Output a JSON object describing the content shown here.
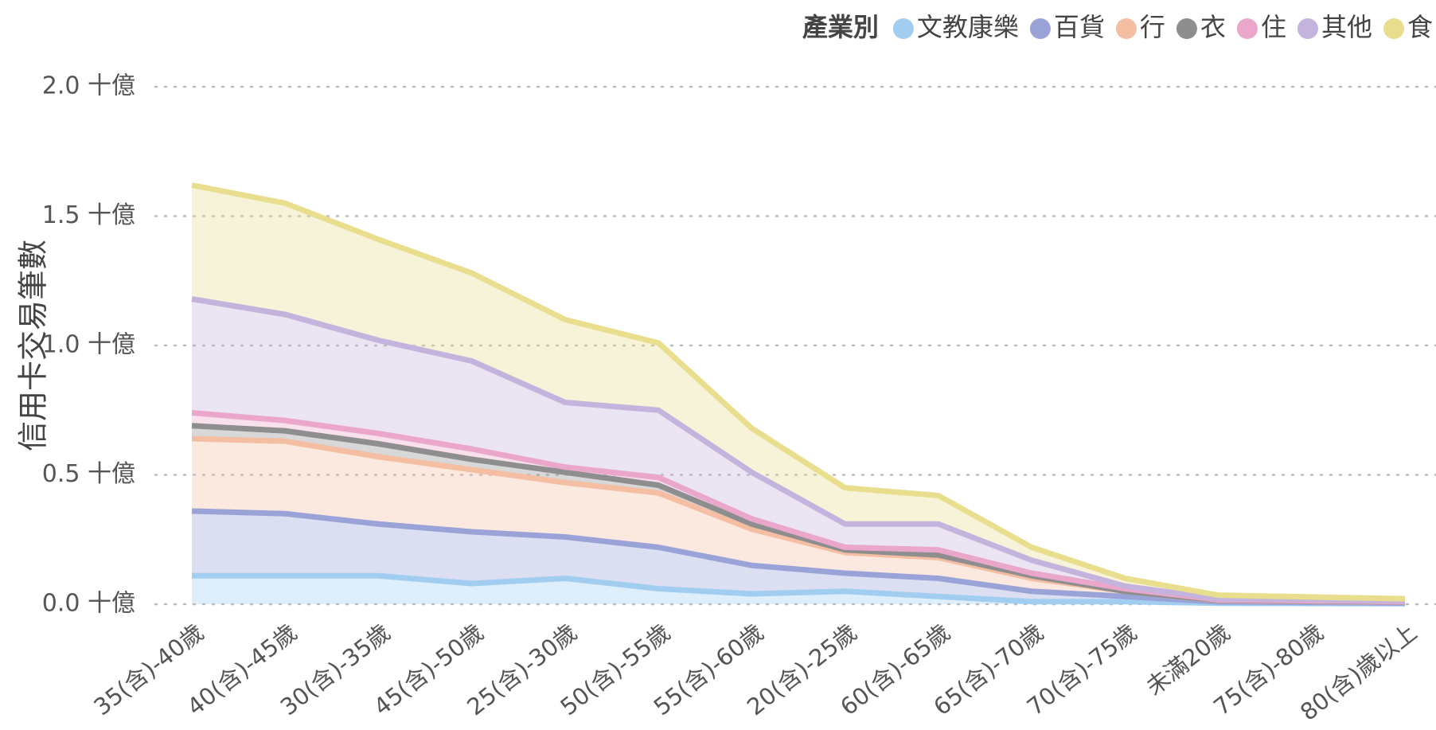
{
  "chart_data": {
    "type": "stacked_area",
    "ylabel": "信用卡交易筆數",
    "legend_title": "產業別",
    "legend_position": "top-right",
    "grid": true,
    "categories": [
      "35(含)-40歲",
      "40(含)-45歲",
      "30(含)-35歲",
      "45(含)-50歲",
      "25(含)-30歲",
      "50(含)-55歲",
      "55(含)-60歲",
      "20(含)-25歲",
      "60(含)-65歲",
      "65(含)-70歲",
      "70(含)-75歲",
      "未滿20歲",
      "75(含)-80歲",
      "80(含)歲以上"
    ],
    "series": [
      {
        "name": "文教康樂",
        "color": "#a0cdf0",
        "values": [
          0.11,
          0.11,
          0.11,
          0.08,
          0.1,
          0.06,
          0.04,
          0.05,
          0.03,
          0.01,
          0.01,
          0.004,
          0.003,
          0.002
        ]
      },
      {
        "name": "百貨",
        "color": "#9aa3d8",
        "values": [
          0.25,
          0.24,
          0.2,
          0.2,
          0.16,
          0.16,
          0.11,
          0.07,
          0.07,
          0.04,
          0.02,
          0.005,
          0.004,
          0.003
        ]
      },
      {
        "name": "行",
        "color": "#f4bea3",
        "values": [
          0.28,
          0.28,
          0.26,
          0.24,
          0.21,
          0.21,
          0.14,
          0.08,
          0.08,
          0.05,
          0.02,
          0.005,
          0.004,
          0.003
        ]
      },
      {
        "name": "衣",
        "color": "#8e8e8e",
        "values": [
          0.05,
          0.04,
          0.05,
          0.04,
          0.04,
          0.03,
          0.02,
          0.01,
          0.01,
          0.01,
          0.0,
          0.001,
          0.001,
          0.001
        ]
      },
      {
        "name": "住",
        "color": "#eba6cc",
        "values": [
          0.05,
          0.04,
          0.04,
          0.04,
          0.02,
          0.03,
          0.02,
          0.01,
          0.02,
          0.01,
          0.01,
          0.002,
          0.002,
          0.001
        ]
      },
      {
        "name": "其他",
        "color": "#c4b3dd",
        "values": [
          0.44,
          0.41,
          0.36,
          0.34,
          0.25,
          0.26,
          0.18,
          0.09,
          0.1,
          0.05,
          0.01,
          0.004,
          0.004,
          0.003
        ]
      },
      {
        "name": "食",
        "color": "#e8de8e",
        "values": [
          0.44,
          0.43,
          0.39,
          0.34,
          0.32,
          0.26,
          0.17,
          0.14,
          0.11,
          0.05,
          0.03,
          0.014,
          0.01,
          0.008
        ]
      }
    ],
    "ylim": [
      0,
      2
    ],
    "yticks": [
      {
        "value": 0,
        "label": "0.0 十億"
      },
      {
        "value": 0.5,
        "label": "0.5 十億"
      },
      {
        "value": 1,
        "label": "1.0 十億"
      },
      {
        "value": 1.5,
        "label": "1.5 十億"
      },
      {
        "value": 2,
        "label": "2.0 十億"
      }
    ]
  }
}
